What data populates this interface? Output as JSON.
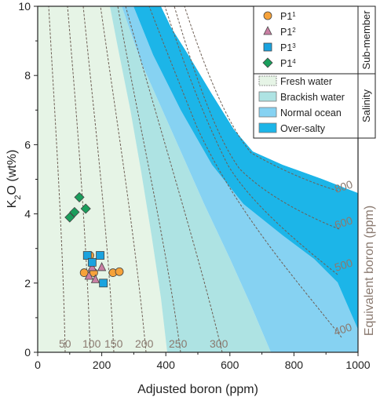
{
  "chart_data": {
    "type": "scatter",
    "xlabel": "Adjusted boron  (ppm)",
    "ylabel_main": "K",
    "ylabel_sub": "2",
    "ylabel_rest": "O  (wt%)",
    "right_axis_label": "Equivalent boron  (ppm)",
    "xlim": [
      0,
      1000
    ],
    "ylim": [
      0,
      10
    ],
    "x_ticks": [
      "0",
      "200",
      "400",
      "600",
      "800",
      "1000"
    ],
    "y_ticks": [
      "0",
      "2",
      "4",
      "6",
      "8",
      "10"
    ],
    "legend_group_submember": "Sub-member",
    "legend_group_salinity": "Salinity",
    "series": [
      {
        "name_main": "P1",
        "name_sup": "1",
        "marker": "circle",
        "color": "#f6a23a",
        "points": [
          [
            145,
            2.3
          ],
          [
            175,
            2.3
          ],
          [
            235,
            2.3
          ],
          [
            255,
            2.33
          ],
          [
            163,
            2.8
          ]
        ]
      },
      {
        "name_main": "P1",
        "name_sup": "2",
        "marker": "triangle",
        "color": "#c97fa3",
        "points": [
          [
            160,
            2.2
          ],
          [
            170,
            2.45
          ],
          [
            180,
            2.1
          ],
          [
            200,
            2.45
          ]
        ]
      },
      {
        "name_main": "P1",
        "name_sup": "3",
        "marker": "square",
        "color": "#1aa3df",
        "points": [
          [
            155,
            2.8
          ],
          [
            170,
            2.6
          ],
          [
            195,
            2.8
          ],
          [
            205,
            2.0
          ]
        ]
      },
      {
        "name_main": "P1",
        "name_sup": "4",
        "marker": "diamond",
        "color": "#1a9e5c",
        "points": [
          [
            100,
            3.9
          ],
          [
            115,
            4.05
          ],
          [
            130,
            4.48
          ],
          [
            150,
            4.15
          ]
        ]
      }
    ],
    "salinity_zones": [
      {
        "name": "Fresh water",
        "color": "#e6f4e6"
      },
      {
        "name": "Brackish water",
        "color": "#aee3e3"
      },
      {
        "name": "Normal ocean",
        "color": "#86d2f2"
      },
      {
        "name": "Over-salty",
        "color": "#1cb5e8"
      }
    ],
    "contours": [
      {
        "label": "50",
        "value": 50
      },
      {
        "label": "100",
        "value": 100
      },
      {
        "label": "150",
        "value": 150
      },
      {
        "label": "200",
        "value": 200
      },
      {
        "label": "250",
        "value": 250
      },
      {
        "label": "300",
        "value": 300
      },
      {
        "label": "400",
        "value": 400
      },
      {
        "label": "500",
        "value": 500
      },
      {
        "label": "600",
        "value": 600
      },
      {
        "label": "800",
        "value": 800
      }
    ]
  }
}
